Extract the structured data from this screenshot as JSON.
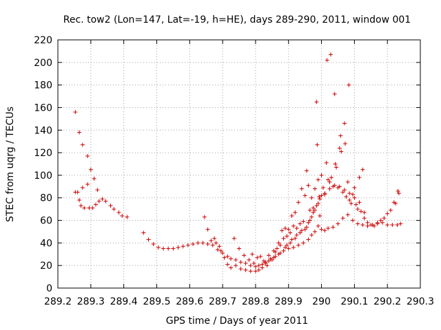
{
  "chart_data": {
    "type": "scatter",
    "title": "Rec. tow2 (Lon=147, Lat=-19, h=HE), days 289-290, 2011, window 001",
    "xlabel": "GPS time / Days of year 2011",
    "ylabel": "STEC from uqrg / TECUs",
    "xlim": [
      289.2,
      290.3
    ],
    "ylim": [
      0,
      220
    ],
    "x_ticks": [
      289.2,
      289.3,
      289.4,
      289.5,
      289.6,
      289.7,
      289.8,
      289.9,
      290,
      290.1,
      290.2,
      290.3
    ],
    "x_tick_labels": [
      "289.2",
      "289.3",
      "289.4",
      "289.5",
      "289.6",
      "289.7",
      "289.8",
      "289.9",
      "290",
      "290.1",
      "290.2",
      "290.3"
    ],
    "y_ticks": [
      0,
      20,
      40,
      60,
      80,
      100,
      120,
      140,
      160,
      180,
      200,
      220
    ],
    "y_tick_labels": [
      "0",
      "20",
      "40",
      "60",
      "80",
      "100",
      "120",
      "140",
      "160",
      "180",
      "200",
      "220"
    ],
    "grid": true,
    "marker": "+",
    "marker_color": "#cc0000",
    "points": [
      [
        289.253,
        156
      ],
      [
        289.265,
        138
      ],
      [
        289.275,
        127
      ],
      [
        289.29,
        117
      ],
      [
        289.3,
        105
      ],
      [
        289.31,
        97
      ],
      [
        289.32,
        87
      ],
      [
        289.253,
        85
      ],
      [
        289.26,
        85
      ],
      [
        289.265,
        78
      ],
      [
        289.27,
        73
      ],
      [
        289.275,
        89
      ],
      [
        289.28,
        71
      ],
      [
        289.29,
        92
      ],
      [
        289.295,
        71
      ],
      [
        289.305,
        71
      ],
      [
        289.315,
        74
      ],
      [
        289.325,
        77
      ],
      [
        289.335,
        79
      ],
      [
        289.345,
        77
      ],
      [
        289.36,
        73
      ],
      [
        289.37,
        70
      ],
      [
        289.385,
        67
      ],
      [
        289.395,
        64
      ],
      [
        289.41,
        63
      ],
      [
        289.46,
        49
      ],
      [
        289.475,
        43
      ],
      [
        289.49,
        39
      ],
      [
        289.505,
        36
      ],
      [
        289.52,
        35
      ],
      [
        289.535,
        35
      ],
      [
        289.55,
        35
      ],
      [
        289.565,
        36
      ],
      [
        289.58,
        37
      ],
      [
        289.595,
        38
      ],
      [
        289.61,
        39
      ],
      [
        289.625,
        40
      ],
      [
        289.64,
        40
      ],
      [
        289.655,
        39
      ],
      [
        289.67,
        38
      ],
      [
        289.685,
        34
      ],
      [
        289.7,
        31
      ],
      [
        289.715,
        28
      ],
      [
        289.725,
        26
      ],
      [
        289.74,
        25
      ],
      [
        289.755,
        23
      ],
      [
        289.77,
        22
      ],
      [
        289.785,
        20
      ],
      [
        289.8,
        19
      ],
      [
        289.81,
        20
      ],
      [
        289.82,
        21
      ],
      [
        289.83,
        22
      ],
      [
        289.84,
        24
      ],
      [
        289.855,
        27
      ],
      [
        289.87,
        30
      ],
      [
        289.885,
        33
      ],
      [
        289.9,
        35
      ],
      [
        289.915,
        36
      ],
      [
        289.93,
        38
      ],
      [
        289.945,
        40
      ],
      [
        289.96,
        43
      ],
      [
        289.97,
        47
      ],
      [
        289.98,
        50
      ],
      [
        289.99,
        55
      ],
      [
        289.645,
        63
      ],
      [
        289.655,
        52
      ],
      [
        289.665,
        42
      ],
      [
        289.675,
        44
      ],
      [
        289.68,
        40
      ],
      [
        289.69,
        37
      ],
      [
        289.695,
        33
      ],
      [
        289.705,
        27
      ],
      [
        289.715,
        21
      ],
      [
        289.725,
        18
      ],
      [
        289.735,
        44
      ],
      [
        289.74,
        20
      ],
      [
        289.75,
        35
      ],
      [
        289.755,
        17
      ],
      [
        289.765,
        29
      ],
      [
        289.77,
        16
      ],
      [
        289.78,
        25
      ],
      [
        289.785,
        15
      ],
      [
        289.79,
        30
      ],
      [
        289.795,
        22
      ],
      [
        289.8,
        15
      ],
      [
        289.805,
        27
      ],
      [
        289.81,
        16
      ],
      [
        289.815,
        28
      ],
      [
        289.82,
        18
      ],
      [
        289.825,
        24
      ],
      [
        289.83,
        23
      ],
      [
        289.835,
        20
      ],
      [
        289.84,
        29
      ],
      [
        289.845,
        26
      ],
      [
        289.85,
        25
      ],
      [
        289.855,
        33
      ],
      [
        289.86,
        32
      ],
      [
        289.865,
        35
      ],
      [
        289.87,
        40
      ],
      [
        289.875,
        38
      ],
      [
        289.88,
        51
      ],
      [
        289.885,
        44
      ],
      [
        289.89,
        53
      ],
      [
        289.895,
        46
      ],
      [
        289.9,
        52
      ],
      [
        289.905,
        49
      ],
      [
        289.91,
        64
      ],
      [
        289.915,
        55
      ],
      [
        289.92,
        67
      ],
      [
        289.925,
        53
      ],
      [
        289.93,
        76
      ],
      [
        289.935,
        57
      ],
      [
        289.94,
        88
      ],
      [
        289.945,
        59
      ],
      [
        289.95,
        82
      ],
      [
        289.955,
        104
      ],
      [
        289.96,
        91
      ],
      [
        289.965,
        69
      ],
      [
        289.97,
        80
      ],
      [
        289.975,
        71
      ],
      [
        289.98,
        88
      ],
      [
        289.985,
        165
      ],
      [
        289.987,
        127
      ],
      [
        289.99,
        96
      ],
      [
        289.993,
        81
      ],
      [
        289.995,
        64
      ],
      [
        290.0,
        100
      ],
      [
        290.005,
        89
      ],
      [
        290.01,
        83
      ],
      [
        290.015,
        111
      ],
      [
        290.017,
        202
      ],
      [
        290.02,
        96
      ],
      [
        290.025,
        94
      ],
      [
        290.028,
        207
      ],
      [
        290.03,
        98
      ],
      [
        290.035,
        90
      ],
      [
        290.04,
        172
      ],
      [
        290.042,
        110
      ],
      [
        290.045,
        107
      ],
      [
        290.05,
        89
      ],
      [
        290.055,
        124
      ],
      [
        290.058,
        135
      ],
      [
        290.06,
        121
      ],
      [
        290.065,
        85
      ],
      [
        290.07,
        146
      ],
      [
        290.072,
        128
      ],
      [
        290.075,
        81
      ],
      [
        290.08,
        94
      ],
      [
        290.083,
        180
      ],
      [
        290.085,
        78
      ],
      [
        290.09,
        75
      ],
      [
        290.095,
        83
      ],
      [
        290.1,
        89
      ],
      [
        290.105,
        74
      ],
      [
        290.11,
        70
      ],
      [
        290.115,
        98
      ],
      [
        290.12,
        68
      ],
      [
        290.125,
        105
      ],
      [
        290.13,
        62
      ],
      [
        290.14,
        58
      ],
      [
        290.15,
        56
      ],
      [
        290.16,
        55
      ],
      [
        290.17,
        57
      ],
      [
        290.18,
        60
      ],
      [
        290.19,
        62
      ],
      [
        290.2,
        66
      ],
      [
        290.21,
        69
      ],
      [
        290.22,
        76
      ],
      [
        290.225,
        75
      ],
      [
        290.232,
        86
      ],
      [
        290.235,
        84
      ],
      [
        290.0,
        52
      ],
      [
        290.01,
        51
      ],
      [
        290.02,
        53
      ],
      [
        290.035,
        54
      ],
      [
        290.05,
        57
      ],
      [
        290.065,
        62
      ],
      [
        290.08,
        65
      ],
      [
        290.095,
        60
      ],
      [
        290.11,
        57
      ],
      [
        290.125,
        56
      ],
      [
        290.14,
        55
      ],
      [
        290.155,
        56
      ],
      [
        290.17,
        58
      ],
      [
        290.185,
        58
      ],
      [
        290.2,
        56
      ],
      [
        290.215,
        56
      ],
      [
        290.23,
        56
      ],
      [
        290.24,
        57
      ],
      [
        289.895,
        38
      ],
      [
        289.91,
        43
      ],
      [
        289.925,
        47
      ],
      [
        289.94,
        51
      ],
      [
        289.955,
        54
      ],
      [
        289.965,
        60
      ],
      [
        289.975,
        67
      ],
      [
        289.985,
        73
      ],
      [
        289.995,
        79
      ],
      [
        290.01,
        84
      ],
      [
        290.025,
        88
      ],
      [
        290.04,
        91
      ],
      [
        290.055,
        90
      ],
      [
        290.07,
        87
      ],
      [
        290.085,
        84
      ],
      [
        290.1,
        80
      ],
      [
        290.115,
        76
      ],
      [
        290.13,
        67
      ],
      [
        289.86,
        28
      ],
      [
        289.875,
        31
      ],
      [
        289.89,
        36
      ],
      [
        289.905,
        40
      ],
      [
        289.92,
        44
      ],
      [
        289.935,
        49
      ],
      [
        289.95,
        52
      ],
      [
        289.96,
        58
      ],
      [
        289.97,
        63
      ],
      [
        289.98,
        69
      ],
      [
        289.99,
        75
      ],
      [
        290.0,
        82
      ]
    ]
  }
}
